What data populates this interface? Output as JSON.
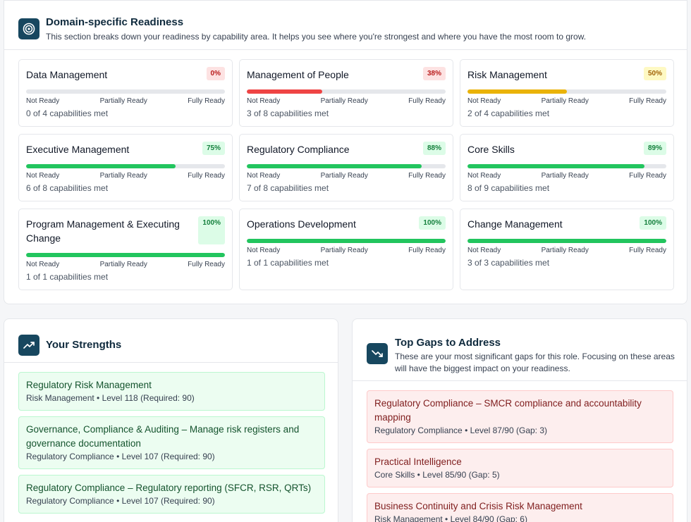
{
  "domain": {
    "title": "Domain-specific Readiness",
    "description": "This section breaks down your readiness by capability area. It helps you see where you're strongest and where you have the most room to grow.",
    "icon": "target-icon",
    "scale": {
      "left": "Not Ready",
      "middle": "Partially Ready",
      "right": "Fully Ready"
    },
    "cards": [
      {
        "name": "Data Management",
        "percent": "0%",
        "progress": 0,
        "status": "red",
        "met": "0 of 4 capabilities met"
      },
      {
        "name": "Management of People",
        "percent": "38%",
        "progress": 0.38,
        "status": "red",
        "met": "3 of 8 capabilities met"
      },
      {
        "name": "Risk Management",
        "percent": "50%",
        "progress": 0.5,
        "status": "yellow",
        "met": "2 of 4 capabilities met"
      },
      {
        "name": "Executive Management",
        "percent": "75%",
        "progress": 0.75,
        "status": "green",
        "met": "6 of 8 capabilities met"
      },
      {
        "name": "Regulatory Compliance",
        "percent": "88%",
        "progress": 0.88,
        "status": "green",
        "met": "7 of 8 capabilities met"
      },
      {
        "name": "Core Skills",
        "percent": "89%",
        "progress": 0.89,
        "status": "green",
        "met": "8 of 9 capabilities met"
      },
      {
        "name": "Program Management & Executing Change",
        "percent": "100%",
        "progress": 1.0,
        "status": "green",
        "met": "1 of 1 capabilities met"
      },
      {
        "name": "Operations Development",
        "percent": "100%",
        "progress": 1.0,
        "status": "green",
        "met": "1 of 1 capabilities met"
      },
      {
        "name": "Change Management",
        "percent": "100%",
        "progress": 1.0,
        "status": "green",
        "met": "3 of 3 capabilities met"
      }
    ]
  },
  "strengths": {
    "title": "Your Strengths",
    "icon": "trending-up-icon",
    "items": [
      {
        "title": "Regulatory Risk Management",
        "meta": "Risk Management • Level 118 (Required: 90)"
      },
      {
        "title": "Governance, Compliance & Auditing – Manage risk registers and governance documentation",
        "meta": "Regulatory Compliance • Level 107 (Required: 90)"
      },
      {
        "title": "Regulatory Compliance – Regulatory reporting (SFCR, RSR, QRTs)",
        "meta": "Regulatory Compliance • Level 107 (Required: 90)"
      }
    ]
  },
  "gaps": {
    "title": "Top Gaps to Address",
    "description": "These are your most significant gaps for this role. Focusing on these areas will have the biggest impact on your readiness.",
    "icon": "trending-down-icon",
    "items": [
      {
        "title": "Regulatory Compliance – SMCR compliance and accountability mapping",
        "meta": "Regulatory Compliance • Level 87/90 (Gap: 3)"
      },
      {
        "title": "Practical Intelligence",
        "meta": "Core Skills • Level 85/90 (Gap: 5)"
      },
      {
        "title": "Business Continuity and Crisis Risk Management",
        "meta": "Risk Management • Level 84/90 (Gap: 6)"
      }
    ]
  },
  "colors": {
    "red": "#ef4444",
    "yellow": "#eab308",
    "green": "#22c55e",
    "accent": "#17475f"
  }
}
